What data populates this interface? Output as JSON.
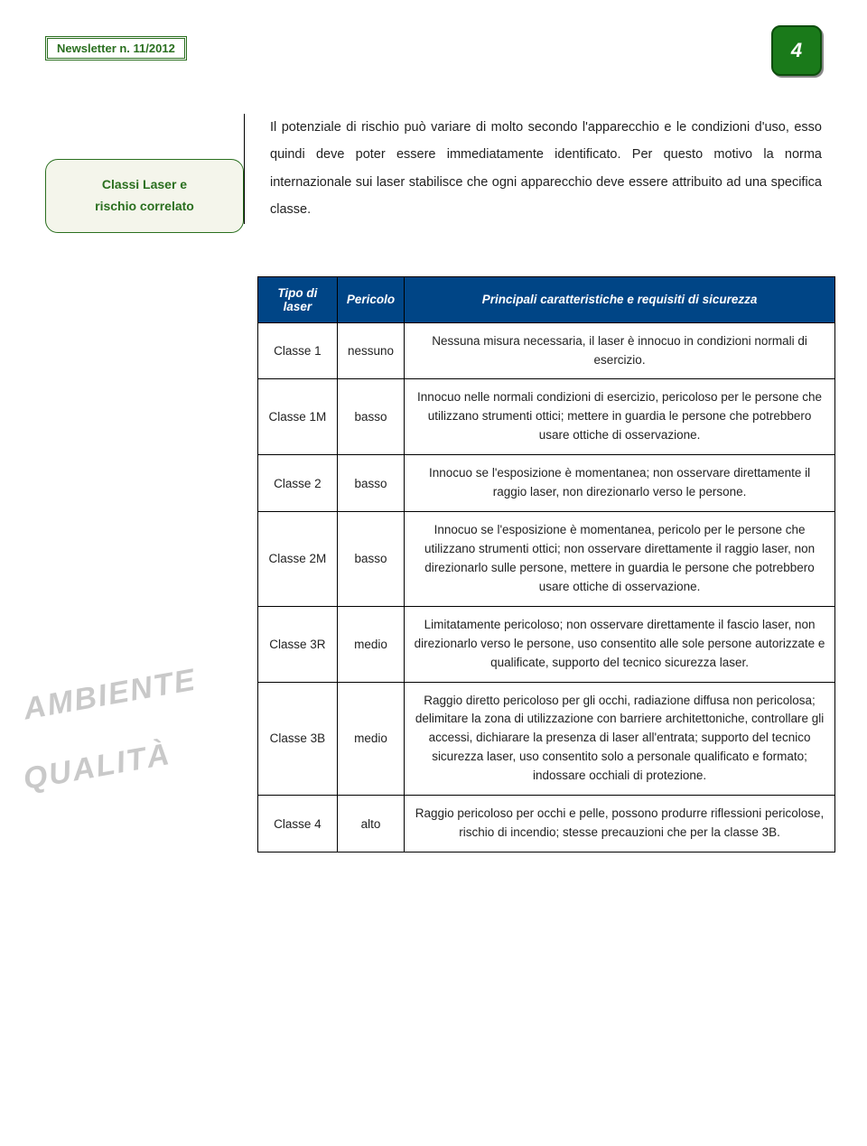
{
  "header": {
    "newsletter_label": "Newsletter n. 11/2012",
    "page_number": "4"
  },
  "callout": {
    "line1": "Classi Laser e",
    "line2": "rischio correlato"
  },
  "intro": {
    "text": "Il potenziale di rischio può variare di molto secondo l'apparecchio e le condizioni d'uso, esso quindi deve poter essere immediatamente identificato. Per questo motivo la norma internazionale sui laser stabilisce che ogni apparecchio deve essere attribuito ad una specifica classe."
  },
  "table": {
    "header": {
      "col1": "Tipo di laser",
      "col2": "Pericolo",
      "col3": "Principali caratteristiche e requisiti di sicurezza"
    },
    "rows": [
      {
        "type": "Classe 1",
        "risk": "nessuno",
        "desc": "Nessuna misura necessaria, il laser è innocuo in condizioni normali di esercizio."
      },
      {
        "type": "Classe 1M",
        "risk": "basso",
        "desc": "Innocuo nelle normali condizioni di esercizio, pericoloso per le persone che utilizzano strumenti ottici; mettere in guardia le persone che potrebbero usare ottiche di osservazione."
      },
      {
        "type": "Classe 2",
        "risk": "basso",
        "desc": "Innocuo se l'esposizione è momentanea; non osservare direttamente il raggio laser, non direzionarlo verso le persone."
      },
      {
        "type": "Classe 2M",
        "risk": "basso",
        "desc": "Innocuo se l'esposizione è momentanea, pericolo per le persone che utilizzano strumenti ottici; non osservare direttamente il raggio laser, non direzionarlo sulle persone, mettere in guardia le persone che potrebbero usare ottiche di osservazione."
      },
      {
        "type": "Classe 3R",
        "risk": "medio",
        "desc": "Limitatamente pericoloso; non osservare direttamente il fascio laser, non direzionarlo verso le persone, uso consentito alle sole persone autorizzate e qualificate, supporto del tecnico sicurezza laser."
      },
      {
        "type": "Classe 3B",
        "risk": "medio",
        "desc": "Raggio diretto pericoloso per gli occhi, radiazione diffusa non pericolosa; delimitare la zona di utilizzazione con barriere architettoniche, controllare gli accessi, dichiarare la presenza di laser all'entrata; supporto del tecnico sicurezza laser, uso consentito solo a personale qualificato e formato; indossare occhiali di protezione."
      },
      {
        "type": "Classe 4",
        "risk": "alto",
        "desc": "Raggio pericoloso per occhi e pelle, possono produrre riflessioni pericolose, rischio di incendio; stesse precauzioni che per la classe 3B."
      }
    ]
  },
  "watermarks": {
    "wm1": "AMBIENTE",
    "wm2": "QUALITÀ"
  },
  "styles": {
    "badge_bg": "#1a7a1a",
    "header_bg": "#004586",
    "accent_green": "#2a6f1f",
    "callout_bg": "#f4f5eb"
  }
}
